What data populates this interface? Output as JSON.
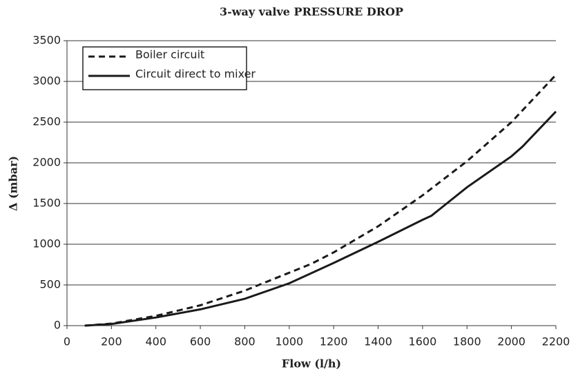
{
  "chart_data": {
    "type": "line",
    "title": "3-way valve PRESSURE DROP",
    "x_label": "Flow (l/h)",
    "y_label": "Δ (mbar)",
    "xlim": [
      0,
      2200
    ],
    "xticks": [
      0,
      200,
      400,
      600,
      800,
      1000,
      1200,
      1400,
      1600,
      1800,
      2000,
      2200
    ],
    "ylim": [
      0,
      3500
    ],
    "yticks": [
      0,
      500,
      1000,
      1500,
      2000,
      2500,
      3000,
      3500
    ],
    "grid": true,
    "legend": "upper left",
    "series": [
      {
        "name": "Boiler circuit",
        "color": "#1a1a1a",
        "dash": true,
        "x": [
          80,
          200,
          400,
          600,
          800,
          1000,
          1100,
          1200,
          1400,
          1600,
          1800,
          2000,
          2200
        ],
        "values": [
          0,
          25,
          120,
          250,
          430,
          650,
          760,
          900,
          1220,
          1600,
          2020,
          2500,
          3080
        ]
      },
      {
        "name": "Circuit direct to mixer",
        "color": "#1a1a1a",
        "dash": false,
        "x": [
          80,
          200,
          400,
          500,
          600,
          800,
          1000,
          1200,
          1400,
          1600,
          1640,
          1800,
          2000,
          2050,
          2200
        ],
        "values": [
          0,
          20,
          100,
          150,
          200,
          330,
          520,
          770,
          1030,
          1300,
          1350,
          1700,
          2080,
          2200,
          2630
        ]
      }
    ]
  }
}
